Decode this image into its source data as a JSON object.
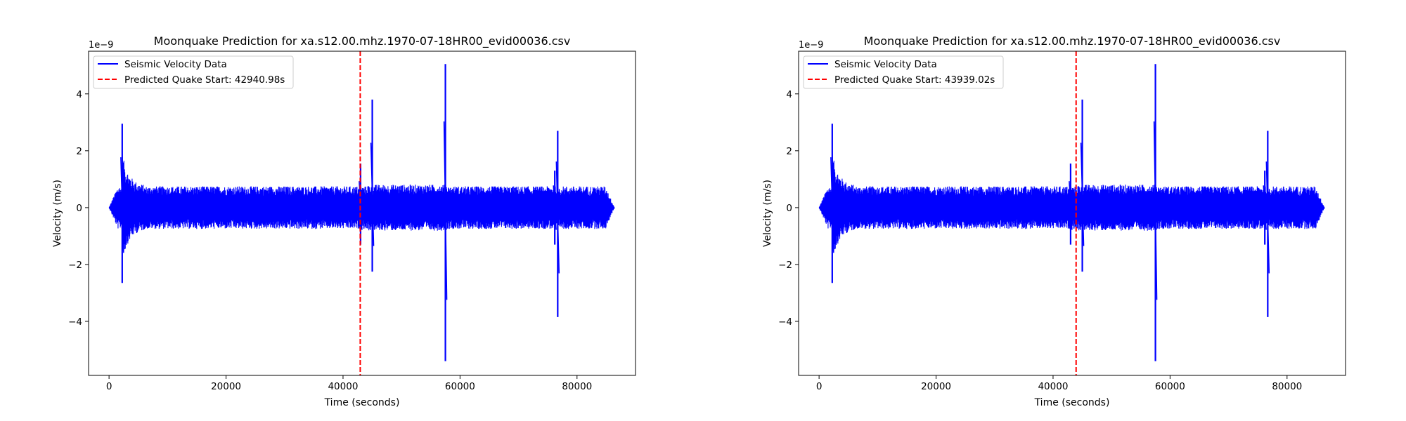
{
  "chart_data": [
    {
      "type": "line",
      "title": "Moonquake Prediction for xa.s12.00.mhz.1970-07-18HR00_evid00036.csv",
      "xlabel": "Time (seconds)",
      "ylabel": "Velocity (m/s)",
      "y_offset_label": "1e−9",
      "xlim": [
        -3500,
        90000
      ],
      "ylim": [
        -5.9,
        5.5
      ],
      "xticks": [
        0,
        20000,
        40000,
        60000,
        80000
      ],
      "yticks": [
        -4,
        -2,
        0,
        2,
        4
      ],
      "grid": false,
      "legend_position": "top-left",
      "colors": {
        "signal": "#0000ff",
        "prediction": "#ff0000"
      },
      "signal": {
        "name": "Seismic Velocity Data",
        "time_range": [
          0,
          86400
        ],
        "noise_envelope_approx": 0.75,
        "spikes": [
          {
            "time": 2250,
            "max": 2.95,
            "min": -2.65
          },
          {
            "time": 43000,
            "max": 1.55,
            "min": -1.3
          },
          {
            "time": 45000,
            "max": 3.8,
            "min": -2.25
          },
          {
            "time": 57500,
            "max": 5.05,
            "min": -5.4
          },
          {
            "time": 76200,
            "max": 1.3,
            "min": -1.3
          },
          {
            "time": 76700,
            "max": 2.7,
            "min": -3.85
          }
        ]
      },
      "prediction": {
        "name": "Predicted Quake Start: 42940.98s",
        "time": 42940.98
      }
    },
    {
      "type": "line",
      "title": "Moonquake Prediction for xa.s12.00.mhz.1970-07-18HR00_evid00036.csv",
      "xlabel": "Time (seconds)",
      "ylabel": "Velocity (m/s)",
      "y_offset_label": "1e−9",
      "xlim": [
        -3500,
        90000
      ],
      "ylim": [
        -5.9,
        5.5
      ],
      "xticks": [
        0,
        20000,
        40000,
        60000,
        80000
      ],
      "yticks": [
        -4,
        -2,
        0,
        2,
        4
      ],
      "grid": false,
      "legend_position": "top-left",
      "colors": {
        "signal": "#0000ff",
        "prediction": "#ff0000"
      },
      "signal": {
        "name": "Seismic Velocity Data",
        "time_range": [
          0,
          86400
        ],
        "noise_envelope_approx": 0.75,
        "spikes": [
          {
            "time": 2250,
            "max": 2.95,
            "min": -2.65
          },
          {
            "time": 43000,
            "max": 1.55,
            "min": -1.3
          },
          {
            "time": 45000,
            "max": 3.8,
            "min": -2.25
          },
          {
            "time": 57500,
            "max": 5.05,
            "min": -5.4
          },
          {
            "time": 76200,
            "max": 1.3,
            "min": -1.3
          },
          {
            "time": 76700,
            "max": 2.7,
            "min": -3.85
          }
        ]
      },
      "prediction": {
        "name": "Predicted Quake Start: 43939.02s",
        "time": 43939.02
      }
    }
  ]
}
